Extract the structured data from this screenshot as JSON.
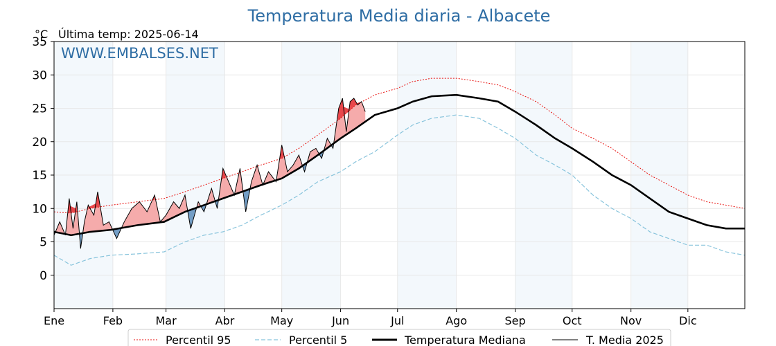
{
  "chart_data": {
    "type": "line",
    "title": "Temperatura Media diaria - Albacete",
    "unit_label": "°C",
    "last_update": "Última temp: 2025-06-14",
    "watermark": "WWW.EMBALSES.NET",
    "ylim": [
      -5,
      35
    ],
    "yticks": [
      0,
      5,
      10,
      15,
      20,
      25,
      30,
      35
    ],
    "xlim": [
      1,
      365
    ],
    "months": [
      "Ene",
      "Feb",
      "Mar",
      "Abr",
      "May",
      "Jun",
      "Jul",
      "Ago",
      "Sep",
      "Oct",
      "Nov",
      "Dic"
    ],
    "month_start_days": [
      1,
      32,
      60,
      91,
      121,
      152,
      182,
      213,
      244,
      274,
      305,
      335
    ],
    "grid": true,
    "legend_position": "bottom-center",
    "colors": {
      "title": "#2e6da4",
      "p95": "#e8120f",
      "p5": "#88c4dc",
      "median": "#000000",
      "current": "#000000",
      "above_fill": "#f4a6a6",
      "above_strong_fill": "#e8474b",
      "below_fill": "#6b99c3",
      "month_band": "#f3f8fc"
    },
    "series": [
      {
        "name": "Percentil 95",
        "style": "dotted",
        "x": [
          1,
          10,
          20,
          31,
          45,
          59,
          70,
          80,
          90,
          100,
          110,
          121,
          130,
          140,
          152,
          160,
          170,
          182,
          190,
          200,
          213,
          225,
          235,
          244,
          255,
          265,
          274,
          285,
          295,
          305,
          315,
          325,
          335,
          345,
          355,
          365
        ],
        "values": [
          9.5,
          9.3,
          10.0,
          10.5,
          11.0,
          11.5,
          12.5,
          13.5,
          14.5,
          15.5,
          16.5,
          17.5,
          19.0,
          21.0,
          23.5,
          25.5,
          27.0,
          28.0,
          29.0,
          29.5,
          29.5,
          29.0,
          28.5,
          27.5,
          26.0,
          24.0,
          22.0,
          20.5,
          19.0,
          17.0,
          15.0,
          13.5,
          12.0,
          11.0,
          10.5,
          10.0
        ]
      },
      {
        "name": "Percentil 5",
        "style": "dashed",
        "x": [
          1,
          10,
          20,
          31,
          45,
          59,
          70,
          80,
          90,
          100,
          110,
          121,
          130,
          140,
          152,
          160,
          170,
          182,
          190,
          200,
          213,
          225,
          235,
          244,
          255,
          265,
          274,
          285,
          295,
          305,
          315,
          325,
          335,
          345,
          355,
          365
        ],
        "values": [
          3.0,
          1.5,
          2.5,
          3.0,
          3.2,
          3.5,
          5.0,
          6.0,
          6.5,
          7.5,
          9.0,
          10.5,
          12.0,
          14.0,
          15.5,
          17.0,
          18.5,
          21.0,
          22.5,
          23.5,
          24.0,
          23.5,
          22.0,
          20.5,
          18.0,
          16.5,
          15.0,
          12.0,
          10.0,
          8.5,
          6.5,
          5.5,
          4.5,
          4.5,
          3.5,
          3.0
        ]
      },
      {
        "name": "Temperatura Mediana",
        "style": "solid-thick",
        "x": [
          1,
          10,
          20,
          31,
          45,
          59,
          70,
          80,
          90,
          100,
          110,
          121,
          130,
          140,
          152,
          160,
          170,
          182,
          190,
          200,
          213,
          225,
          235,
          244,
          255,
          265,
          274,
          285,
          295,
          305,
          315,
          325,
          335,
          345,
          355,
          365
        ],
        "values": [
          6.5,
          6.0,
          6.5,
          6.8,
          7.5,
          8.0,
          9.5,
          10.5,
          11.5,
          12.5,
          13.5,
          14.5,
          16.0,
          18.0,
          20.5,
          22.0,
          24.0,
          25.0,
          26.0,
          26.8,
          27.0,
          26.5,
          26.0,
          24.5,
          22.5,
          20.5,
          19.0,
          17.0,
          15.0,
          13.5,
          11.5,
          9.5,
          8.5,
          7.5,
          7.0,
          7.0
        ]
      },
      {
        "name": "T. Media 2025",
        "style": "solid-thin",
        "x": [
          1,
          4,
          7,
          9,
          11,
          13,
          15,
          17,
          19,
          22,
          24,
          27,
          30,
          34,
          38,
          42,
          46,
          50,
          54,
          57,
          60,
          64,
          67,
          70,
          73,
          77,
          80,
          84,
          87,
          90,
          93,
          96,
          99,
          102,
          105,
          108,
          111,
          114,
          118,
          121,
          124,
          127,
          130,
          133,
          136,
          139,
          142,
          145,
          148,
          151,
          153,
          155,
          157,
          159,
          161,
          163,
          165
        ],
        "values": [
          6.0,
          8.0,
          6.0,
          11.5,
          7.0,
          11.0,
          4.0,
          8.0,
          10.5,
          9.0,
          12.5,
          7.5,
          8.0,
          5.5,
          8.0,
          10.0,
          11.0,
          9.5,
          12.0,
          8.0,
          9.0,
          11.0,
          10.0,
          12.0,
          7.0,
          11.0,
          9.5,
          13.0,
          10.0,
          16.0,
          14.0,
          12.0,
          16.0,
          9.5,
          14.0,
          16.5,
          13.5,
          15.5,
          14.0,
          19.5,
          15.5,
          16.5,
          18.0,
          15.5,
          18.5,
          19.0,
          17.5,
          20.5,
          19.0,
          25.0,
          26.5,
          21.5,
          26.0,
          26.5,
          25.5,
          26.0,
          24.5
        ]
      }
    ]
  }
}
